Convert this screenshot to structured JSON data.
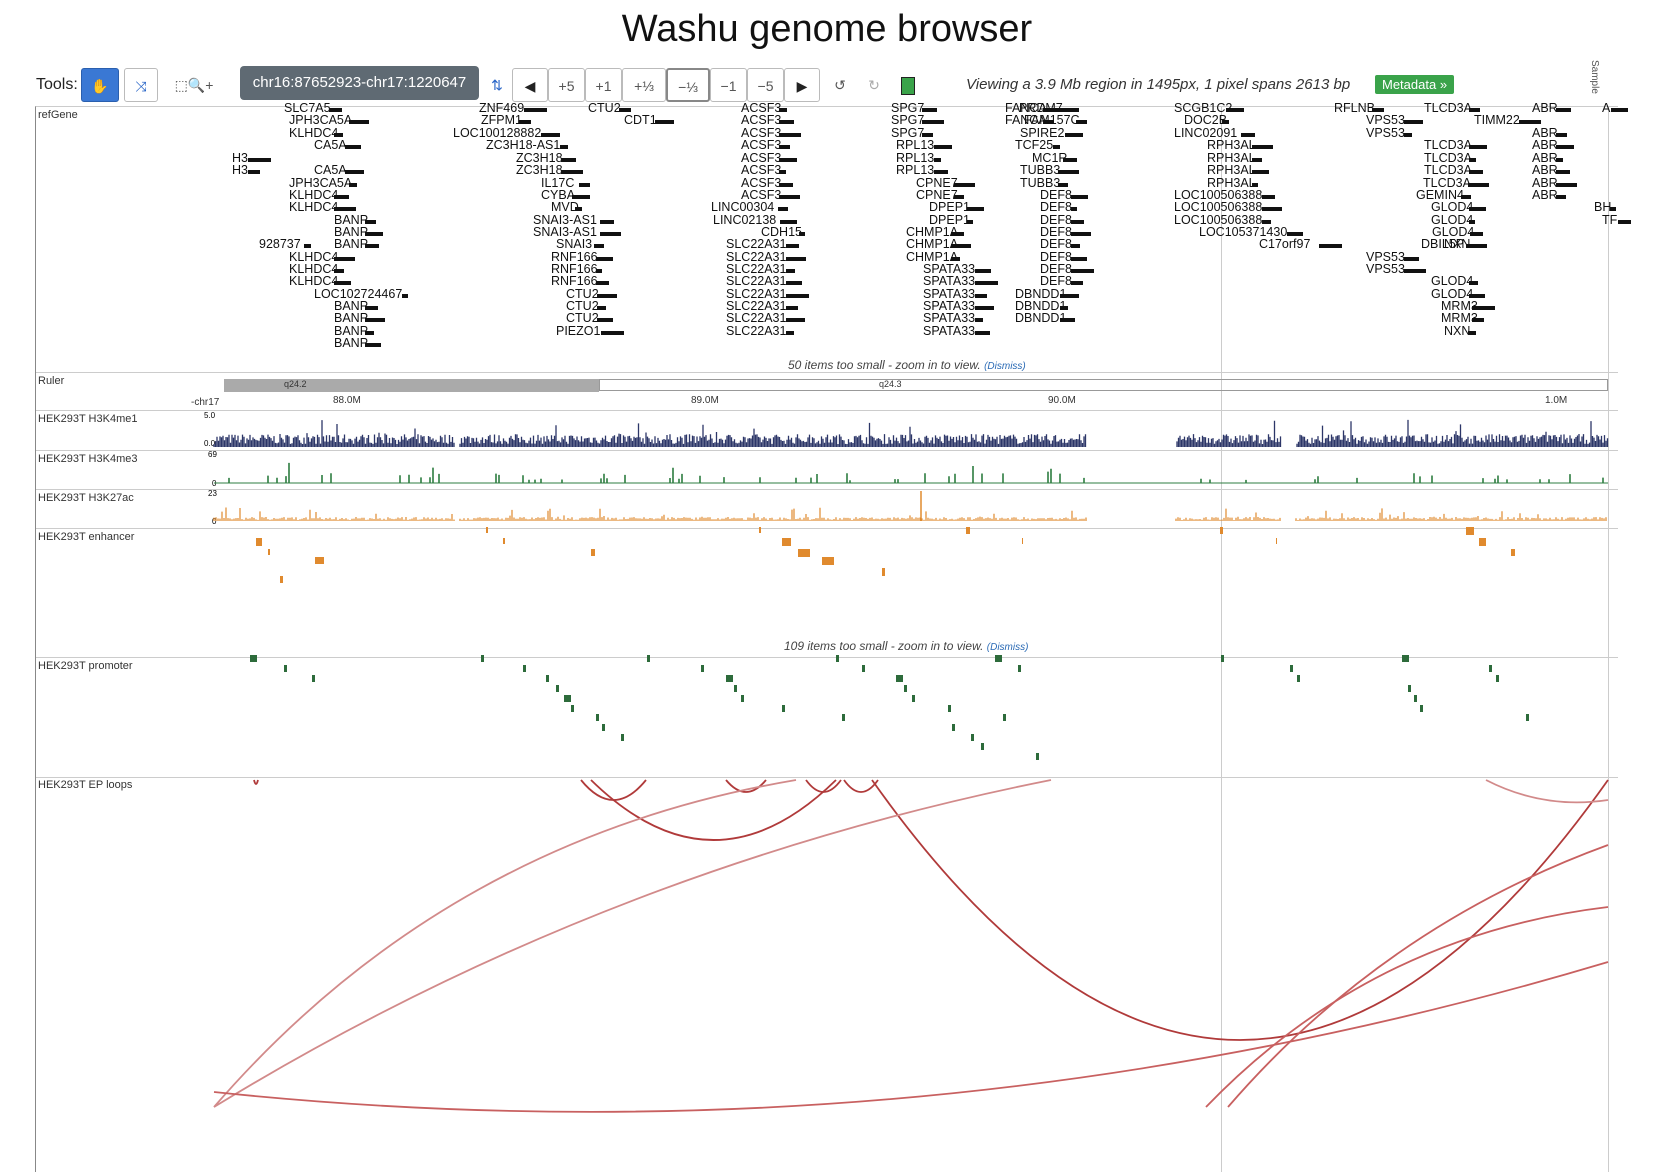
{
  "title": "Washu genome browser",
  "toolbar": {
    "tools_label": "Tools:",
    "region": "chr16:87652923-chr17:1220647",
    "nav_buttons": [
      "+5",
      "+1",
      "+⅓",
      "−⅓",
      "−1",
      "−5"
    ],
    "info": "Viewing a 3.9 Mb region in 1495px, 1 pixel spans 2613 bp",
    "metadata": "Metadata »",
    "sample": "Sample"
  },
  "tracks": {
    "refgene": "refGene",
    "ruler": "Ruler",
    "h3k4me1": "HEK293T H3K4me1",
    "h3k4me3": "HEK293T H3K4me3",
    "h3k27ac": "HEK293T H3K27ac",
    "enhancer": "HEK293T  enhancer",
    "promoter": "HEK293T  promoter",
    "loops": "HEK293T EP loops"
  },
  "notes": {
    "refgene_small": "50 items too small - zoom in to view.",
    "enhancer_small": "109 items too small - zoom in to view.",
    "dismiss": "(Dismiss)"
  },
  "ruler": {
    "band1": "q24.2",
    "band2": "q24.3",
    "ticks": [
      "88.0M",
      "89.0M",
      "90.0M",
      "1.0M"
    ],
    "chr_label": "-chr17"
  },
  "scales": {
    "h3k4me1_max": "5.0",
    "h3k4me1_min": "0.0",
    "h3k4me3_max": "69",
    "h3k4me3_min": "0",
    "h3k27ac_max": "23",
    "h3k27ac_min": "0"
  },
  "genes": [
    "SLC7A5",
    "JPH3CA5A",
    "KLHDC4",
    "CA5A",
    "H3",
    "H3",
    "CA5A",
    "JPH3CA5A",
    "KLHDC4",
    "KLHDC4",
    "BANP",
    "BANP",
    "928737",
    "BANP",
    "KLHDC4",
    "KLHDC4",
    "KLHDC4",
    "LOC102724467",
    "BANP",
    "BANP",
    "BANP",
    "BANP",
    "ZNF469",
    "ZFPM1",
    "LOC100128882",
    "ZC3H18-AS1",
    "ZC3H18",
    "ZC3H18",
    "IL17C",
    "CYBA",
    "MVD",
    "SNAI3-AS1",
    "SNAI3-AS1",
    "SNAI3",
    "RNF166",
    "RNF166",
    "RNF166",
    "CTU2",
    "CTU2",
    "CTU2",
    "PIEZO1",
    "CTU2",
    "CDT1",
    "ACSF3",
    "ACSF3",
    "ACSF3",
    "ACSF3",
    "ACSF3",
    "ACSF3",
    "ACSF3",
    "ACSF3",
    "LINC00304",
    "LINC02138",
    "CDH15",
    "SLC22A31",
    "SLC22A31",
    "SLC22A31",
    "SLC22A31",
    "SLC22A31",
    "SLC22A31",
    "SLC22A31",
    "SLC22A31",
    "SPG7",
    "SPG7",
    "SPG7",
    "RPL13",
    "RPL13",
    "RPL13",
    "CPNE7",
    "CPNE7",
    "DPEP1",
    "DPEP1",
    "CHMP1A",
    "CHMP1A",
    "CHMP1A",
    "SPATA33",
    "SPATA33",
    "SPATA33",
    "SPATA33",
    "SPATA33",
    "SPATA33",
    "FANCA",
    "FANCA",
    "SPIRE2",
    "TCF25",
    "MC1R",
    "TUBB3",
    "TUBB3",
    "DEF8",
    "DEF8",
    "DEF8",
    "DEF8",
    "DEF8",
    "DEF8",
    "DEF8",
    "DEF8",
    "DBNDD1",
    "DBNDD1",
    "DBNDD1",
    "PRDM7",
    "FAM157C",
    "SCGB1C2",
    "DOC2B",
    "LINC02091",
    "RPH3AL",
    "RPH3AL",
    "RPH3AL",
    "RPH3AL",
    "LOC100506388",
    "LOC100506388",
    "LOC100506388",
    "LOC105371430",
    "C17orf97",
    "RFLNB",
    "VPS53",
    "VPS53",
    "VPS53",
    "VPS53",
    "TLCD3A",
    "TLCD3A",
    "TLCD3A",
    "TLCD3A",
    "TLCD3A",
    "GEMIN4",
    "GLOD4",
    "GLOD4",
    "GLOD4",
    "DBIL5P",
    "GLOD4",
    "GLOD4",
    "MRM3",
    "MRM3",
    "NXN",
    "NXN",
    "ABR",
    "TIMM22",
    "ABR",
    "ABR",
    "ABR",
    "ABR",
    "ABR",
    "ABR",
    "A",
    "BH",
    "TF"
  ]
}
